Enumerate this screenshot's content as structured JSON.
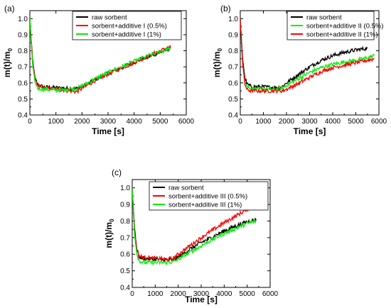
{
  "colors": {
    "black": "#000000",
    "red": "#ff0000",
    "green": "#00ee00"
  },
  "chart_data": [
    {
      "type": "line",
      "panel_label": "(a)",
      "xlabel": "Time [s]",
      "ylabel_main": "m(t)/m",
      "ylabel_sub": "0",
      "xlim": [
        0,
        6000
      ],
      "ylim": [
        0.4,
        1.05
      ],
      "xticks": [
        0,
        1000,
        2000,
        3000,
        4000,
        5000,
        6000
      ],
      "xtick_labels": [
        "0",
        "1000",
        "2000",
        "3000",
        "4000",
        "5000",
        "6000"
      ],
      "yticks": [
        0.4,
        0.5,
        0.6,
        0.7,
        0.8,
        0.9,
        1.0
      ],
      "ytick_labels": [
        "0.4",
        "0.5",
        "0.6",
        "0.7",
        "0.8",
        "0.9",
        "1.0"
      ],
      "legend_position": "top-right",
      "series": [
        {
          "name": "raw sorbent",
          "color": "#000000",
          "x": [
            0,
            100,
            200,
            300,
            500,
            1000,
            1500,
            1800,
            2000,
            2500,
            3000,
            3500,
            4000,
            4500,
            5000,
            5400
          ],
          "y": [
            1.0,
            0.75,
            0.63,
            0.59,
            0.575,
            0.57,
            0.565,
            0.565,
            0.575,
            0.62,
            0.66,
            0.695,
            0.73,
            0.76,
            0.79,
            0.815
          ]
        },
        {
          "name": "sorbent+additive I (0.5%)",
          "color": "#ff0000",
          "x": [
            0,
            100,
            200,
            300,
            500,
            1000,
            1500,
            1800,
            2000,
            2500,
            3000,
            3500,
            4000,
            4500,
            5000,
            5400
          ],
          "y": [
            1.0,
            0.74,
            0.62,
            0.58,
            0.57,
            0.56,
            0.55,
            0.545,
            0.565,
            0.615,
            0.655,
            0.69,
            0.725,
            0.765,
            0.8,
            0.825
          ]
        },
        {
          "name": "sorbent+additive I (1%)",
          "color": "#00ee00",
          "x": [
            0,
            100,
            200,
            300,
            500,
            1000,
            1500,
            1800,
            2000,
            2500,
            3000,
            3500,
            4000,
            4500,
            5000,
            5400
          ],
          "y": [
            1.0,
            0.72,
            0.6,
            0.565,
            0.56,
            0.555,
            0.56,
            0.565,
            0.58,
            0.625,
            0.665,
            0.7,
            0.735,
            0.765,
            0.795,
            0.815
          ]
        }
      ]
    },
    {
      "type": "line",
      "panel_label": "(b)",
      "xlabel": "Time [s]",
      "ylabel_main": "m(t)/m",
      "ylabel_sub": "0",
      "xlim": [
        0,
        6000
      ],
      "ylim": [
        0.4,
        1.05
      ],
      "xticks": [
        0,
        1000,
        2000,
        3000,
        4000,
        5000,
        6000
      ],
      "xtick_labels": [
        "0",
        "1000",
        "2000",
        "3000",
        "4000",
        "5000",
        "6000"
      ],
      "yticks": [
        0.4,
        0.5,
        0.6,
        0.7,
        0.8,
        0.9,
        1.0
      ],
      "ytick_labels": [
        "0.4",
        "0.5",
        "0.6",
        "0.7",
        "0.8",
        "0.9",
        "1.0"
      ],
      "legend_position": "top-right",
      "series": [
        {
          "name": "raw sorbent",
          "color": "#000000",
          "x": [
            0,
            100,
            200,
            300,
            500,
            1000,
            1500,
            1800,
            2000,
            2500,
            3000,
            3500,
            4000,
            4500,
            5000,
            5500
          ],
          "y": [
            1.0,
            0.75,
            0.63,
            0.59,
            0.575,
            0.575,
            0.57,
            0.575,
            0.6,
            0.65,
            0.7,
            0.74,
            0.77,
            0.79,
            0.805,
            0.815
          ]
        },
        {
          "name": "sorbent+additive II (0.5%)",
          "color": "#00ee00",
          "x": [
            0,
            100,
            200,
            300,
            500,
            1000,
            1500,
            1800,
            2000,
            2500,
            3000,
            3500,
            4000,
            4500,
            5000,
            5500,
            5800
          ],
          "y": [
            1.0,
            0.72,
            0.61,
            0.575,
            0.565,
            0.56,
            0.56,
            0.565,
            0.585,
            0.625,
            0.665,
            0.695,
            0.715,
            0.73,
            0.74,
            0.755,
            0.77
          ]
        },
        {
          "name": "sorbent+additive II (1%)",
          "color": "#ff0000",
          "x": [
            0,
            100,
            200,
            300,
            500,
            1000,
            1500,
            1800,
            2000,
            2500,
            3000,
            3500,
            4000,
            4500,
            5000,
            5500,
            5800
          ],
          "y": [
            1.0,
            0.72,
            0.59,
            0.555,
            0.55,
            0.55,
            0.55,
            0.55,
            0.56,
            0.595,
            0.635,
            0.67,
            0.695,
            0.71,
            0.725,
            0.74,
            0.75
          ]
        }
      ]
    },
    {
      "type": "line",
      "panel_label": "(c)",
      "xlabel": "Time [s]",
      "ylabel_main": "m(t)/m",
      "ylabel_sub": "0",
      "xlim": [
        0,
        6000
      ],
      "ylim": [
        0.4,
        1.05
      ],
      "xticks": [
        0,
        1000,
        2000,
        3000,
        4000,
        5000,
        6000
      ],
      "xtick_labels": [
        "0",
        "1000",
        "2000",
        "3000",
        "4000",
        "5000",
        "6000"
      ],
      "yticks": [
        0.4,
        0.5,
        0.6,
        0.7,
        0.8,
        0.9,
        1.0
      ],
      "ytick_labels": [
        "0.4",
        "0.5",
        "0.6",
        "0.7",
        "0.8",
        "0.9",
        "1.0"
      ],
      "legend_position": "top-right",
      "series": [
        {
          "name": "raw sorbent",
          "color": "#000000",
          "x": [
            0,
            100,
            200,
            300,
            500,
            1000,
            1500,
            1800,
            2000,
            2500,
            3000,
            3500,
            4000,
            4500,
            5000,
            5400
          ],
          "y": [
            1.0,
            0.76,
            0.63,
            0.585,
            0.575,
            0.57,
            0.565,
            0.565,
            0.58,
            0.63,
            0.67,
            0.705,
            0.74,
            0.77,
            0.795,
            0.81
          ]
        },
        {
          "name": "sorbent+additive III (0.5%)",
          "color": "#ff0000",
          "x": [
            0,
            100,
            200,
            300,
            500,
            1000,
            1500,
            1800,
            2000,
            2500,
            3000,
            3500,
            4000,
            4500,
            5000,
            5500
          ],
          "y": [
            1.0,
            0.74,
            0.62,
            0.59,
            0.58,
            0.575,
            0.57,
            0.575,
            0.6,
            0.65,
            0.7,
            0.745,
            0.79,
            0.83,
            0.87,
            0.93
          ]
        },
        {
          "name": "sorbent+additive III (1%)",
          "color": "#00ee00",
          "x": [
            0,
            100,
            200,
            300,
            500,
            1000,
            1500,
            1800,
            2000,
            2500,
            3000,
            3500,
            4000,
            4500,
            5000,
            5400
          ],
          "y": [
            1.0,
            0.72,
            0.6,
            0.56,
            0.55,
            0.55,
            0.55,
            0.555,
            0.57,
            0.61,
            0.65,
            0.69,
            0.725,
            0.755,
            0.785,
            0.8
          ]
        }
      ]
    }
  ]
}
